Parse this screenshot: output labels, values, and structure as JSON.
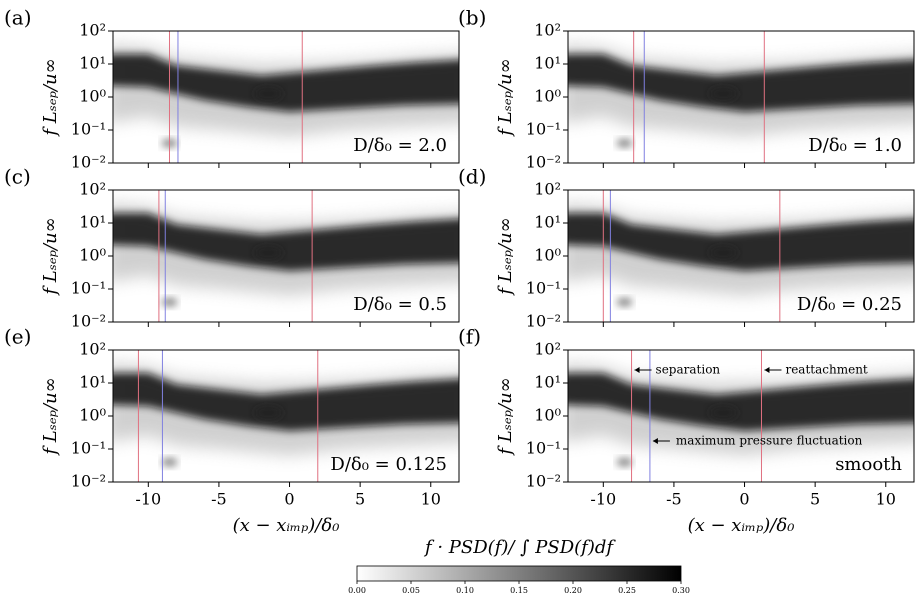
{
  "chart_data": [
    {
      "type": "heatmap",
      "panel_label": "(a)",
      "annotation": "D/δ₀ = 2.0",
      "ylabel": "f Lₛₑₚ/u∞",
      "xlim": [
        -12.5,
        12
      ],
      "xticks": [
        -10,
        -5,
        0,
        5,
        10
      ],
      "ylim": [
        0.01,
        100
      ],
      "log_y": true,
      "yticks": [
        {
          "value": 0.01,
          "label": "10⁻²"
        },
        {
          "value": 0.1,
          "label": "10⁻¹"
        },
        {
          "value": 1,
          "label": "10⁰"
        },
        {
          "value": 10,
          "label": "10¹"
        },
        {
          "value": 100,
          "label": "10²"
        }
      ],
      "vlines": [
        {
          "x": -8.5,
          "color": "#e07080"
        },
        {
          "x": -7.9,
          "color": "#8080e0"
        },
        {
          "x": 0.9,
          "color": "#e07080"
        }
      ]
    },
    {
      "type": "heatmap",
      "panel_label": "(b)",
      "annotation": "D/δ₀ = 1.0",
      "ylabel": "f Lₛₑₚ/u∞",
      "xlim": [
        -12.5,
        12
      ],
      "xticks": [
        -10,
        -5,
        0,
        5,
        10
      ],
      "ylim": [
        0.01,
        100
      ],
      "log_y": true,
      "yticks": [
        {
          "value": 0.01,
          "label": "10⁻²"
        },
        {
          "value": 0.1,
          "label": "10⁻¹"
        },
        {
          "value": 1,
          "label": "10⁰"
        },
        {
          "value": 10,
          "label": "10¹"
        },
        {
          "value": 100,
          "label": "10²"
        }
      ],
      "vlines": [
        {
          "x": -7.85,
          "color": "#e07080"
        },
        {
          "x": -7.1,
          "color": "#8080e0"
        },
        {
          "x": 1.4,
          "color": "#e07080"
        }
      ]
    },
    {
      "type": "heatmap",
      "panel_label": "(c)",
      "annotation": "D/δ₀ = 0.5",
      "ylabel": "f Lₛₑₚ/u∞",
      "xlim": [
        -12.5,
        12
      ],
      "xticks": [
        -10,
        -5,
        0,
        5,
        10
      ],
      "ylim": [
        0.01,
        100
      ],
      "log_y": true,
      "yticks": [
        {
          "value": 0.01,
          "label": "10⁻²"
        },
        {
          "value": 0.1,
          "label": "10⁻¹"
        },
        {
          "value": 1,
          "label": "10⁰"
        },
        {
          "value": 10,
          "label": "10¹"
        },
        {
          "value": 100,
          "label": "10²"
        }
      ],
      "vlines": [
        {
          "x": -9.25,
          "color": "#e07080"
        },
        {
          "x": -8.8,
          "color": "#8080e0"
        },
        {
          "x": 1.6,
          "color": "#e07080"
        }
      ]
    },
    {
      "type": "heatmap",
      "panel_label": "(d)",
      "annotation": "D/δ₀ = 0.25",
      "ylabel": "f Lₛₑₚ/u∞",
      "xlim": [
        -12.5,
        12
      ],
      "xticks": [
        -10,
        -5,
        0,
        5,
        10
      ],
      "ylim": [
        0.01,
        100
      ],
      "log_y": true,
      "yticks": [
        {
          "value": 0.01,
          "label": "10⁻²"
        },
        {
          "value": 0.1,
          "label": "10⁻¹"
        },
        {
          "value": 1,
          "label": "10⁰"
        },
        {
          "value": 10,
          "label": "10¹"
        },
        {
          "value": 100,
          "label": "10²"
        }
      ],
      "vlines": [
        {
          "x": -10.0,
          "color": "#e07080"
        },
        {
          "x": -9.5,
          "color": "#8080e0"
        },
        {
          "x": 2.5,
          "color": "#e07080"
        }
      ]
    },
    {
      "type": "heatmap",
      "panel_label": "(e)",
      "annotation": "D/δ₀ = 0.125",
      "ylabel": "f Lₛₑₚ/u∞",
      "xlabel": "(x − xᵢₘₚ)/δ₀",
      "xlim": [
        -12.5,
        12
      ],
      "xticks": [
        -10,
        -5,
        0,
        5,
        10
      ],
      "ylim": [
        0.01,
        100
      ],
      "log_y": true,
      "yticks": [
        {
          "value": 0.01,
          "label": "10⁻²"
        },
        {
          "value": 0.1,
          "label": "10⁻¹"
        },
        {
          "value": 1,
          "label": "10⁰"
        },
        {
          "value": 10,
          "label": "10¹"
        },
        {
          "value": 100,
          "label": "10²"
        }
      ],
      "vlines": [
        {
          "x": -10.7,
          "color": "#e07080"
        },
        {
          "x": -9.0,
          "color": "#8080e0"
        },
        {
          "x": 2.0,
          "color": "#e07080"
        }
      ]
    },
    {
      "type": "heatmap",
      "panel_label": "(f)",
      "annotation": "smooth",
      "ylabel": "f Lₛₑₚ/u∞",
      "xlabel": "(x − xᵢₘₚ)/δ₀",
      "xlim": [
        -12.5,
        12
      ],
      "xticks": [
        -10,
        -5,
        0,
        5,
        10
      ],
      "ylim": [
        0.01,
        100
      ],
      "log_y": true,
      "yticks": [
        {
          "value": 0.01,
          "label": "10⁻²"
        },
        {
          "value": 0.1,
          "label": "10⁻¹"
        },
        {
          "value": 1,
          "label": "10⁰"
        },
        {
          "value": 10,
          "label": "10¹"
        },
        {
          "value": 100,
          "label": "10²"
        }
      ],
      "vlines": [
        {
          "x": -8.0,
          "color": "#e07080"
        },
        {
          "x": -6.7,
          "color": "#8080e0"
        },
        {
          "x": 1.2,
          "color": "#e07080"
        }
      ],
      "notes": [
        "separation",
        "reattachment",
        "maximum pressure fluctuation"
      ]
    }
  ],
  "colorbar": {
    "label": "f · PSD(f)/ ∫ PSD(f)df",
    "lim": [
      0,
      0.3
    ],
    "ticks": [
      {
        "value": 0,
        "label": "0.00"
      },
      {
        "value": 0.05,
        "label": "0.05"
      },
      {
        "value": 0.1,
        "label": "0.10"
      },
      {
        "value": 0.15,
        "label": "0.15"
      },
      {
        "value": 0.2,
        "label": "0.20"
      },
      {
        "value": 0.25,
        "label": "0.25"
      },
      {
        "value": 0.3,
        "label": "0.30"
      }
    ]
  }
}
